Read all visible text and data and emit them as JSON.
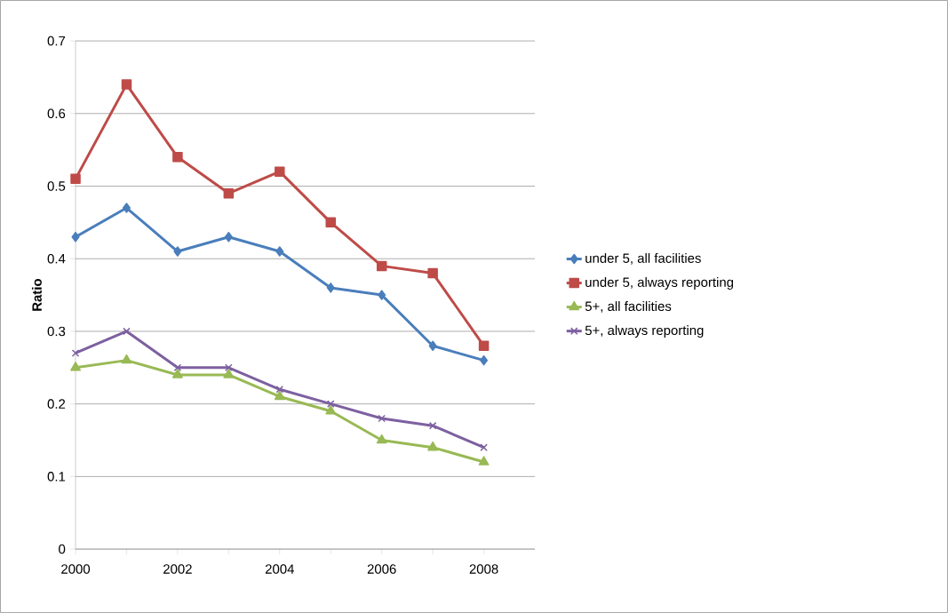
{
  "chart_data": {
    "type": "line",
    "ylabel": "Ratio",
    "categories": [
      "2000",
      null,
      "2002",
      null,
      "2004",
      null,
      "2006",
      null,
      "2008"
    ],
    "ylim": [
      0,
      0.7
    ],
    "yticks": [
      0,
      0.1,
      0.2,
      0.3,
      0.4,
      0.5,
      0.6,
      0.7
    ],
    "grid": "y",
    "legend": "right",
    "series": [
      {
        "name": "under 5, all facilities",
        "color": "#4a7ebb",
        "marker": "diamond",
        "values": [
          0.43,
          0.47,
          0.41,
          0.43,
          0.41,
          0.36,
          0.35,
          0.28,
          0.26
        ]
      },
      {
        "name": "under 5, always reporting",
        "color": "#be4b48",
        "marker": "square",
        "values": [
          0.51,
          0.64,
          0.54,
          0.49,
          0.52,
          0.45,
          0.39,
          0.38,
          0.28
        ]
      },
      {
        "name": "5+, all facilities",
        "color": "#98b954",
        "marker": "triangle",
        "values": [
          0.25,
          0.26,
          0.24,
          0.24,
          0.21,
          0.19,
          0.15,
          0.14,
          0.12
        ]
      },
      {
        "name": "5+, always reporting",
        "color": "#7d60a0",
        "marker": "cross",
        "values": [
          0.27,
          0.3,
          0.25,
          0.25,
          0.22,
          0.2,
          0.18,
          0.17,
          0.14
        ]
      }
    ]
  }
}
